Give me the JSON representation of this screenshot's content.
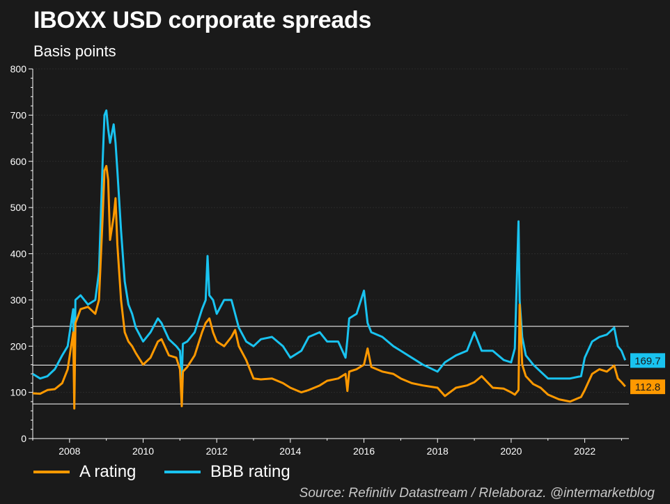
{
  "title": "IBOXX USD corporate spreads",
  "subtitle": "Basis points",
  "source": "Source: Refinitiv Datastream / RIelaboraz. @intermarketblog",
  "colors": {
    "a_rating": "#ff9900",
    "bbb_rating": "#19c3f0",
    "background": "#1a1a1a",
    "hlines": "#ffffff"
  },
  "chart_data": {
    "type": "line",
    "xlim": [
      2007.0,
      2023.2
    ],
    "ylim": [
      0,
      800
    ],
    "x_ticks": [
      "2008",
      "2010",
      "2012",
      "2014",
      "2016",
      "2018",
      "2020",
      "2022"
    ],
    "y_ticks": [
      "0",
      "100",
      "200",
      "300",
      "400",
      "500",
      "600",
      "700",
      "800"
    ],
    "horizontal_lines": [
      243,
      159,
      75
    ],
    "legend_position": "bottom-left",
    "series": [
      {
        "name": "A rating",
        "color": "#ff9900",
        "last_value_label": "112.8",
        "x": [
          2007.0,
          2007.2,
          2007.4,
          2007.6,
          2007.8,
          2007.95,
          2008.1,
          2008.13,
          2008.16,
          2008.3,
          2008.5,
          2008.7,
          2008.8,
          2008.9,
          2008.95,
          2009.0,
          2009.05,
          2009.1,
          2009.2,
          2009.25,
          2009.3,
          2009.4,
          2009.5,
          2009.6,
          2009.7,
          2009.8,
          2010.0,
          2010.2,
          2010.4,
          2010.5,
          2010.7,
          2010.9,
          2011.0,
          2011.05,
          2011.08,
          2011.2,
          2011.4,
          2011.6,
          2011.7,
          2011.8,
          2011.9,
          2012.0,
          2012.2,
          2012.4,
          2012.5,
          2012.6,
          2012.8,
          2013.0,
          2013.2,
          2013.5,
          2013.8,
          2014.0,
          2014.3,
          2014.5,
          2014.8,
          2015.0,
          2015.3,
          2015.5,
          2015.55,
          2015.6,
          2015.8,
          2016.0,
          2016.1,
          2016.2,
          2016.5,
          2016.8,
          2017.0,
          2017.3,
          2017.6,
          2018.0,
          2018.2,
          2018.5,
          2018.8,
          2019.0,
          2019.2,
          2019.5,
          2019.8,
          2020.0,
          2020.1,
          2020.2,
          2020.23,
          2020.3,
          2020.4,
          2020.6,
          2020.8,
          2021.0,
          2021.3,
          2021.6,
          2021.9,
          2022.0,
          2022.2,
          2022.4,
          2022.6,
          2022.8,
          2022.9,
          2023.0,
          2023.1
        ],
        "values": [
          98,
          97,
          105,
          107,
          120,
          150,
          230,
          65,
          250,
          280,
          285,
          270,
          300,
          480,
          580,
          590,
          560,
          430,
          480,
          520,
          420,
          300,
          230,
          210,
          200,
          185,
          160,
          175,
          210,
          215,
          180,
          175,
          150,
          70,
          145,
          155,
          180,
          230,
          250,
          260,
          230,
          210,
          200,
          220,
          235,
          200,
          170,
          130,
          128,
          130,
          120,
          110,
          100,
          105,
          115,
          125,
          130,
          140,
          103,
          145,
          150,
          160,
          195,
          155,
          145,
          140,
          130,
          120,
          115,
          110,
          92,
          110,
          115,
          122,
          135,
          110,
          108,
          100,
          95,
          105,
          290,
          160,
          135,
          118,
          110,
          95,
          85,
          80,
          90,
          105,
          140,
          150,
          145,
          158,
          130,
          122,
          112.8
        ]
      },
      {
        "name": "BBB rating",
        "color": "#19c3f0",
        "last_value_label": "169.7",
        "x": [
          2007.0,
          2007.2,
          2007.4,
          2007.6,
          2007.8,
          2007.95,
          2008.1,
          2008.13,
          2008.16,
          2008.3,
          2008.5,
          2008.7,
          2008.8,
          2008.9,
          2008.95,
          2009.0,
          2009.05,
          2009.1,
          2009.2,
          2009.25,
          2009.3,
          2009.4,
          2009.5,
          2009.6,
          2009.7,
          2009.8,
          2010.0,
          2010.2,
          2010.4,
          2010.5,
          2010.7,
          2010.9,
          2011.0,
          2011.05,
          2011.08,
          2011.2,
          2011.4,
          2011.6,
          2011.7,
          2011.75,
          2011.8,
          2011.9,
          2012.0,
          2012.2,
          2012.4,
          2012.5,
          2012.6,
          2012.8,
          2013.0,
          2013.2,
          2013.5,
          2013.8,
          2014.0,
          2014.3,
          2014.5,
          2014.8,
          2015.0,
          2015.3,
          2015.5,
          2015.55,
          2015.6,
          2015.8,
          2016.0,
          2016.1,
          2016.2,
          2016.5,
          2016.8,
          2017.0,
          2017.3,
          2017.6,
          2018.0,
          2018.2,
          2018.5,
          2018.8,
          2019.0,
          2019.2,
          2019.5,
          2019.8,
          2020.0,
          2020.1,
          2020.2,
          2020.23,
          2020.3,
          2020.4,
          2020.6,
          2020.8,
          2021.0,
          2021.3,
          2021.6,
          2021.9,
          2022.0,
          2022.2,
          2022.4,
          2022.6,
          2022.8,
          2022.9,
          2023.0,
          2023.1
        ],
        "values": [
          140,
          130,
          135,
          150,
          180,
          200,
          280,
          95,
          300,
          310,
          290,
          300,
          360,
          600,
          700,
          710,
          670,
          640,
          680,
          640,
          580,
          450,
          340,
          290,
          270,
          240,
          210,
          230,
          260,
          250,
          215,
          200,
          190,
          130,
          205,
          210,
          230,
          280,
          300,
          395,
          310,
          300,
          270,
          300,
          300,
          270,
          240,
          210,
          200,
          215,
          220,
          200,
          175,
          190,
          220,
          230,
          210,
          210,
          175,
          215,
          260,
          270,
          320,
          250,
          230,
          220,
          200,
          190,
          175,
          160,
          145,
          165,
          180,
          190,
          230,
          190,
          190,
          170,
          165,
          195,
          470,
          300,
          220,
          180,
          160,
          145,
          130,
          130,
          130,
          135,
          175,
          210,
          220,
          225,
          240,
          200,
          190,
          169.7
        ]
      }
    ]
  }
}
